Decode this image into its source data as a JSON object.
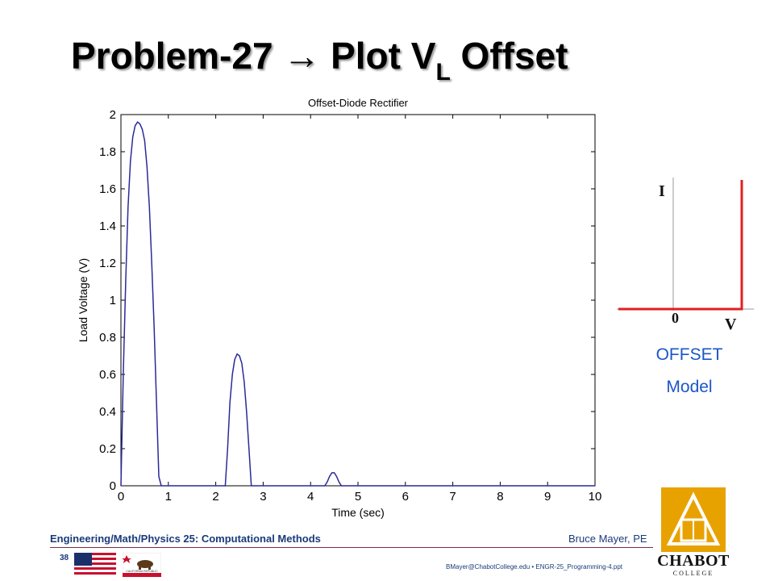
{
  "slide": {
    "title_main": "Problem-27 → Plot V",
    "title_sub": "L",
    "title_end": " Offset",
    "model_label_line1": "OFFSET",
    "model_label_line2": "Model",
    "model_axis_i": "I",
    "model_axis_v": "V",
    "model_origin": "0",
    "footer_course": "Engineering/Math/Physics 25: Computational Methods",
    "footer_author": "Bruce Mayer, PE",
    "page_number": "38",
    "footer_email": "BMayer@ChabotCollege.edu  •  ENGR-25_Programming-4.ppt",
    "logo_text": "CHABOT",
    "logo_subtext": "COLLEGE",
    "flag_state_text": "CALIFORNIA REPUBLIC"
  },
  "chart_data": {
    "type": "line",
    "title": "Offset-Diode Rectifier",
    "xlabel": "Time (sec)",
    "ylabel": "Load Voltage (V)",
    "xlim": [
      0,
      10
    ],
    "ylim": [
      0,
      2
    ],
    "xticks": [
      0,
      1,
      2,
      3,
      4,
      5,
      6,
      7,
      8,
      9,
      10
    ],
    "yticks": [
      0,
      0.2,
      0.4,
      0.6,
      0.8,
      1,
      1.2,
      1.4,
      1.6,
      1.8,
      2
    ],
    "ytick_labels": [
      "0",
      "0.2",
      "0.4",
      "0.6",
      "0.8",
      "1",
      "1.2",
      "1.4",
      "1.6",
      "1.8",
      "2"
    ],
    "grid": true,
    "grid_style": "dotted",
    "line_color": "#2a2a9a",
    "series": [
      {
        "x": [
          0,
          0.05,
          0.1,
          0.15,
          0.2,
          0.25,
          0.3,
          0.35,
          0.4,
          0.45,
          0.5,
          0.55,
          0.6,
          0.65,
          0.7,
          0.75,
          0.8,
          0.85,
          0.9,
          0.95,
          1.0,
          2.0,
          2.05,
          2.1,
          2.15,
          2.2,
          2.25,
          2.3,
          2.35,
          2.4,
          2.45,
          2.5,
          2.55,
          2.6,
          2.65,
          2.7,
          2.75,
          2.8,
          2.85,
          2.9,
          2.95,
          3.0,
          3.5,
          4.0,
          4.3,
          4.35,
          4.4,
          4.45,
          4.5,
          4.55,
          4.6,
          4.65,
          4.7,
          5.0,
          6.0,
          7.0,
          8.0,
          9.0,
          10.0
        ],
        "y": [
          0,
          0.6,
          1.1,
          1.5,
          1.75,
          1.88,
          1.94,
          1.96,
          1.95,
          1.92,
          1.86,
          1.72,
          1.5,
          1.2,
          0.85,
          0.45,
          0.05,
          0,
          0,
          0,
          0,
          0,
          0,
          0,
          0,
          0,
          0.2,
          0.45,
          0.6,
          0.68,
          0.71,
          0.7,
          0.66,
          0.56,
          0.4,
          0.2,
          0,
          0,
          0,
          0,
          0,
          0,
          0,
          0,
          0,
          0.02,
          0.05,
          0.07,
          0.07,
          0.05,
          0.02,
          0,
          0,
          0,
          0,
          0,
          0,
          0,
          0
        ]
      }
    ]
  },
  "colors": {
    "title": "#000000",
    "model_curve": "#e02020",
    "model_label": "#1a56c8",
    "footer_text": "#1a3a7a",
    "logo_gold": "#e8a200"
  }
}
